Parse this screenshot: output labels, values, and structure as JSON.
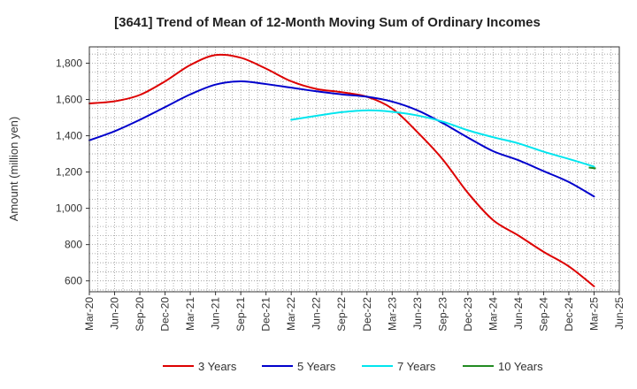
{
  "chart_data": {
    "type": "line",
    "title": "[3641]  Trend of Mean of 12-Month Moving Sum of Ordinary Incomes",
    "xlabel": "",
    "ylabel": "Amount (million yen)",
    "ylim": [
      540,
      1890
    ],
    "yticks": [
      600,
      800,
      1000,
      1200,
      1400,
      1600,
      1800
    ],
    "ytick_labels": [
      "600",
      "800",
      "1,000",
      "1,200",
      "1,400",
      "1,600",
      "1,800"
    ],
    "categories": [
      "Mar-20",
      "Jun-20",
      "Sep-20",
      "Dec-20",
      "Mar-21",
      "Jun-21",
      "Sep-21",
      "Dec-21",
      "Mar-22",
      "Jun-22",
      "Sep-22",
      "Dec-22",
      "Mar-23",
      "Jun-23",
      "Sep-23",
      "Dec-23",
      "Mar-24",
      "Jun-24",
      "Sep-24",
      "Dec-24",
      "Mar-25",
      "Jun-25"
    ],
    "grid": true,
    "legend_position": "bottom",
    "series": [
      {
        "name": "3 Years",
        "color": "#dd0000",
        "values": [
          1578,
          1590,
          1625,
          1700,
          1790,
          1845,
          1830,
          1770,
          1700,
          1658,
          1640,
          1615,
          1550,
          1420,
          1270,
          1085,
          935,
          850,
          760,
          680,
          570,
          null
        ]
      },
      {
        "name": "5 Years",
        "color": "#0000cc",
        "values": [
          1375,
          1425,
          1488,
          1558,
          1628,
          1682,
          1700,
          1685,
          1665,
          1645,
          1628,
          1615,
          1588,
          1540,
          1470,
          1390,
          1315,
          1265,
          1205,
          1145,
          1065,
          null
        ]
      },
      {
        "name": "7 Years",
        "color": "#00e5ee",
        "values": [
          null,
          null,
          null,
          null,
          null,
          null,
          null,
          null,
          1488,
          1510,
          1530,
          1540,
          1532,
          1512,
          1478,
          1430,
          1392,
          1358,
          1312,
          1272,
          1230,
          null
        ]
      },
      {
        "name": "10 Years",
        "color": "#228b22",
        "values": [
          null,
          null,
          null,
          null,
          null,
          null,
          null,
          null,
          null,
          null,
          null,
          null,
          null,
          null,
          null,
          null,
          null,
          null,
          null,
          null,
          1220,
          null
        ]
      }
    ]
  }
}
